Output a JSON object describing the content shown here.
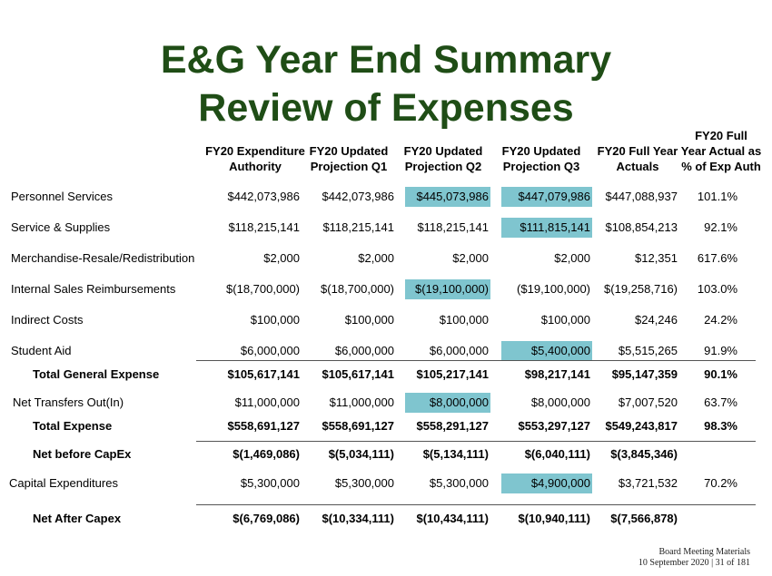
{
  "title": {
    "line1": "E&G Year End Summary",
    "line2": "Review of Expenses"
  },
  "columns": [
    {
      "line1": "FY20 Expenditure",
      "line2": "Authority"
    },
    {
      "line1": "FY20 Updated",
      "line2": "Projection Q1"
    },
    {
      "line1": "FY20 Updated",
      "line2": "Projection Q2"
    },
    {
      "line1": "FY20 Updated",
      "line2": "Projection Q3"
    },
    {
      "line1": "FY20 Full Year",
      "line2": "Actuals"
    },
    {
      "line0": "FY20  Full",
      "line1": "Year Actual as",
      "line2": "% of Exp Auth"
    }
  ],
  "rows": [
    {
      "label": "Personnel Services",
      "values": [
        "$442,073,986",
        "$442,073,986",
        "$445,073,986",
        "$447,079,986",
        "$447,088,937",
        "101.1%"
      ]
    },
    {
      "label": "Service & Supplies",
      "values": [
        "$118,215,141",
        "$118,215,141",
        "$118,215,141",
        "$111,815,141",
        "$108,854,213",
        "92.1%"
      ]
    },
    {
      "label": "Merchandise-Resale/Redistribution",
      "values": [
        "$2,000",
        "$2,000",
        "$2,000",
        "$2,000",
        "$12,351",
        "617.6%"
      ]
    },
    {
      "label": "Internal Sales Reimbursements",
      "values": [
        "$(18,700,000)",
        "$(18,700,000)",
        "$(19,100,000)",
        "($19,100,000)",
        "$(19,258,716)",
        "103.0%"
      ]
    },
    {
      "label": "Indirect Costs",
      "values": [
        "$100,000",
        "$100,000",
        "$100,000",
        "$100,000",
        "$24,246",
        "24.2%"
      ]
    },
    {
      "label": "Student Aid",
      "values": [
        "$6,000,000",
        "$6,000,000",
        "$6,000,000",
        "$5,400,000",
        "$5,515,265",
        "91.9%"
      ]
    },
    {
      "label": "Total General Expense",
      "values": [
        "$105,617,141",
        "$105,617,141",
        "$105,217,141",
        "$98,217,141",
        "$95,147,359",
        "90.1%"
      ]
    },
    {
      "label": "Net Transfers Out(In)",
      "values": [
        "$11,000,000",
        "$11,000,000",
        "$8,000,000",
        "$8,000,000",
        "$7,007,520",
        "63.7%"
      ]
    },
    {
      "label": "Total Expense",
      "values": [
        "$558,691,127",
        "$558,691,127",
        "$558,291,127",
        "$553,297,127",
        "$549,243,817",
        "98.3%"
      ]
    },
    {
      "label": "Net before CapEx",
      "values": [
        "$(1,469,086)",
        "$(5,034,111)",
        "$(5,134,111)",
        "$(6,040,111)",
        "$(3,845,346)",
        ""
      ]
    },
    {
      "label": "Capital Expenditures",
      "values": [
        "$5,300,000",
        "$5,300,000",
        "$5,300,000",
        "$4,900,000",
        "$3,721,532",
        "70.2%"
      ]
    },
    {
      "label": "Net After Capex",
      "values": [
        "$(6,769,086)",
        "$(10,334,111)",
        "$(10,434,111)",
        "$(10,940,111)",
        "$(7,566,878)",
        ""
      ]
    }
  ],
  "highlight_color": "#7fc5cf",
  "title_color": "#1f4d16",
  "footer": {
    "line1": "Board Meeting Materials",
    "line2": "10 September 2020 | 31 of 181"
  }
}
